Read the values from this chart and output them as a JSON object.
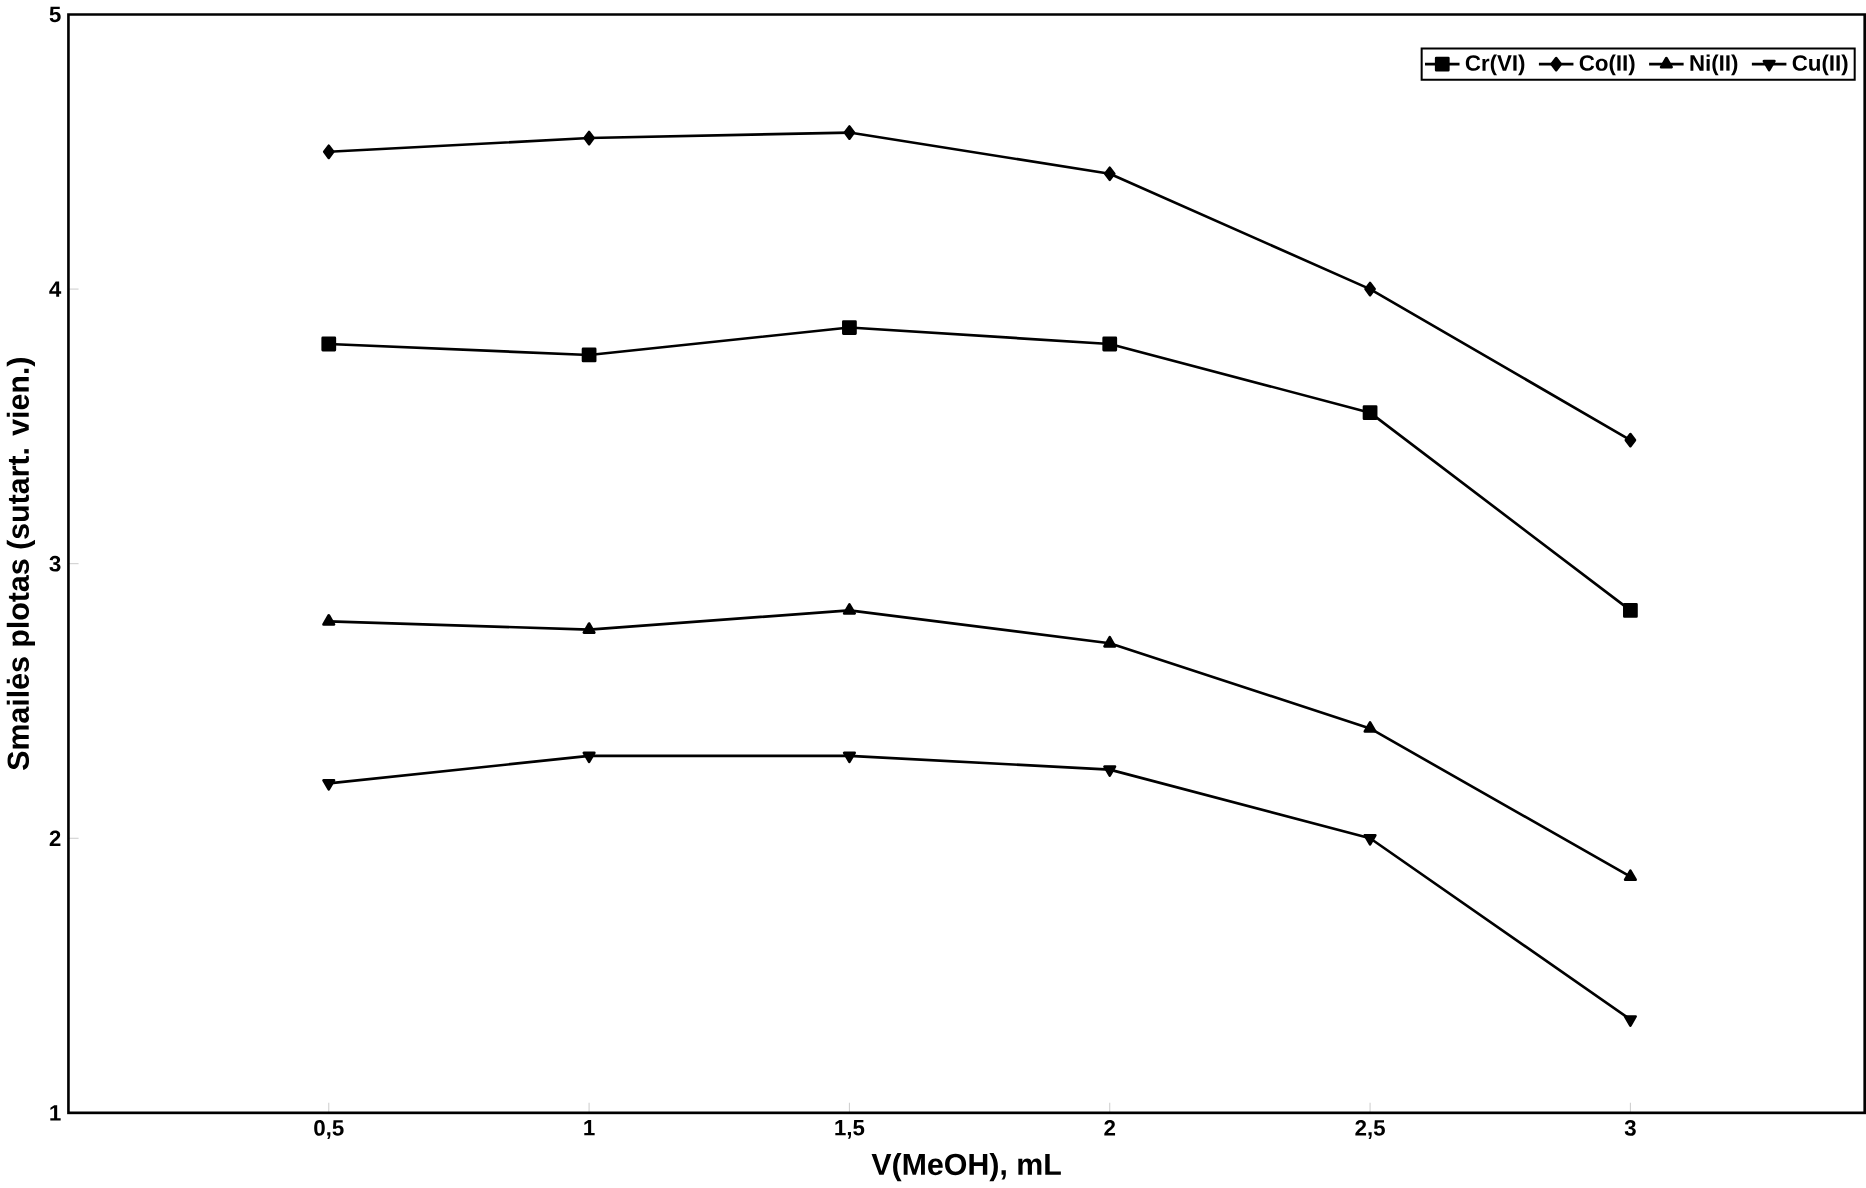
{
  "chart_data": {
    "type": "line",
    "xlabel": "V(MeOH), mL",
    "ylabel": "Smailės plotas (sutart. vien.)",
    "x": [
      0.5,
      1,
      1.5,
      2,
      2.5,
      3
    ],
    "xlim": [
      0,
      3.45
    ],
    "xticks": [
      {
        "value": 0.5,
        "label": "0,5"
      },
      {
        "value": 1,
        "label": "1"
      },
      {
        "value": 1.5,
        "label": "1,5"
      },
      {
        "value": 2,
        "label": "2"
      },
      {
        "value": 2.5,
        "label": "2,5"
      },
      {
        "value": 3,
        "label": "3"
      }
    ],
    "ylim": [
      1,
      5
    ],
    "yticks": [
      1,
      2,
      3,
      4,
      5
    ],
    "legend": "top right",
    "grid": false,
    "series": [
      {
        "name": "Cr(VI)",
        "color": "#000000",
        "marker": "square",
        "values": [
          3.8,
          3.76,
          3.86,
          3.8,
          3.55,
          2.83
        ]
      },
      {
        "name": "Co(II)",
        "color": "#000000",
        "marker": "diamond",
        "values": [
          4.5,
          4.55,
          4.57,
          4.42,
          4.0,
          3.45
        ]
      },
      {
        "name": "Ni(II)",
        "color": "#000000",
        "marker": "triangle",
        "values": [
          2.79,
          2.76,
          2.83,
          2.71,
          2.4,
          1.86
        ]
      },
      {
        "name": "Cu(II)",
        "color": "#000000",
        "marker": "triangle down",
        "values": [
          2.2,
          2.3,
          2.3,
          2.25,
          2.0,
          1.34
        ]
      }
    ]
  }
}
